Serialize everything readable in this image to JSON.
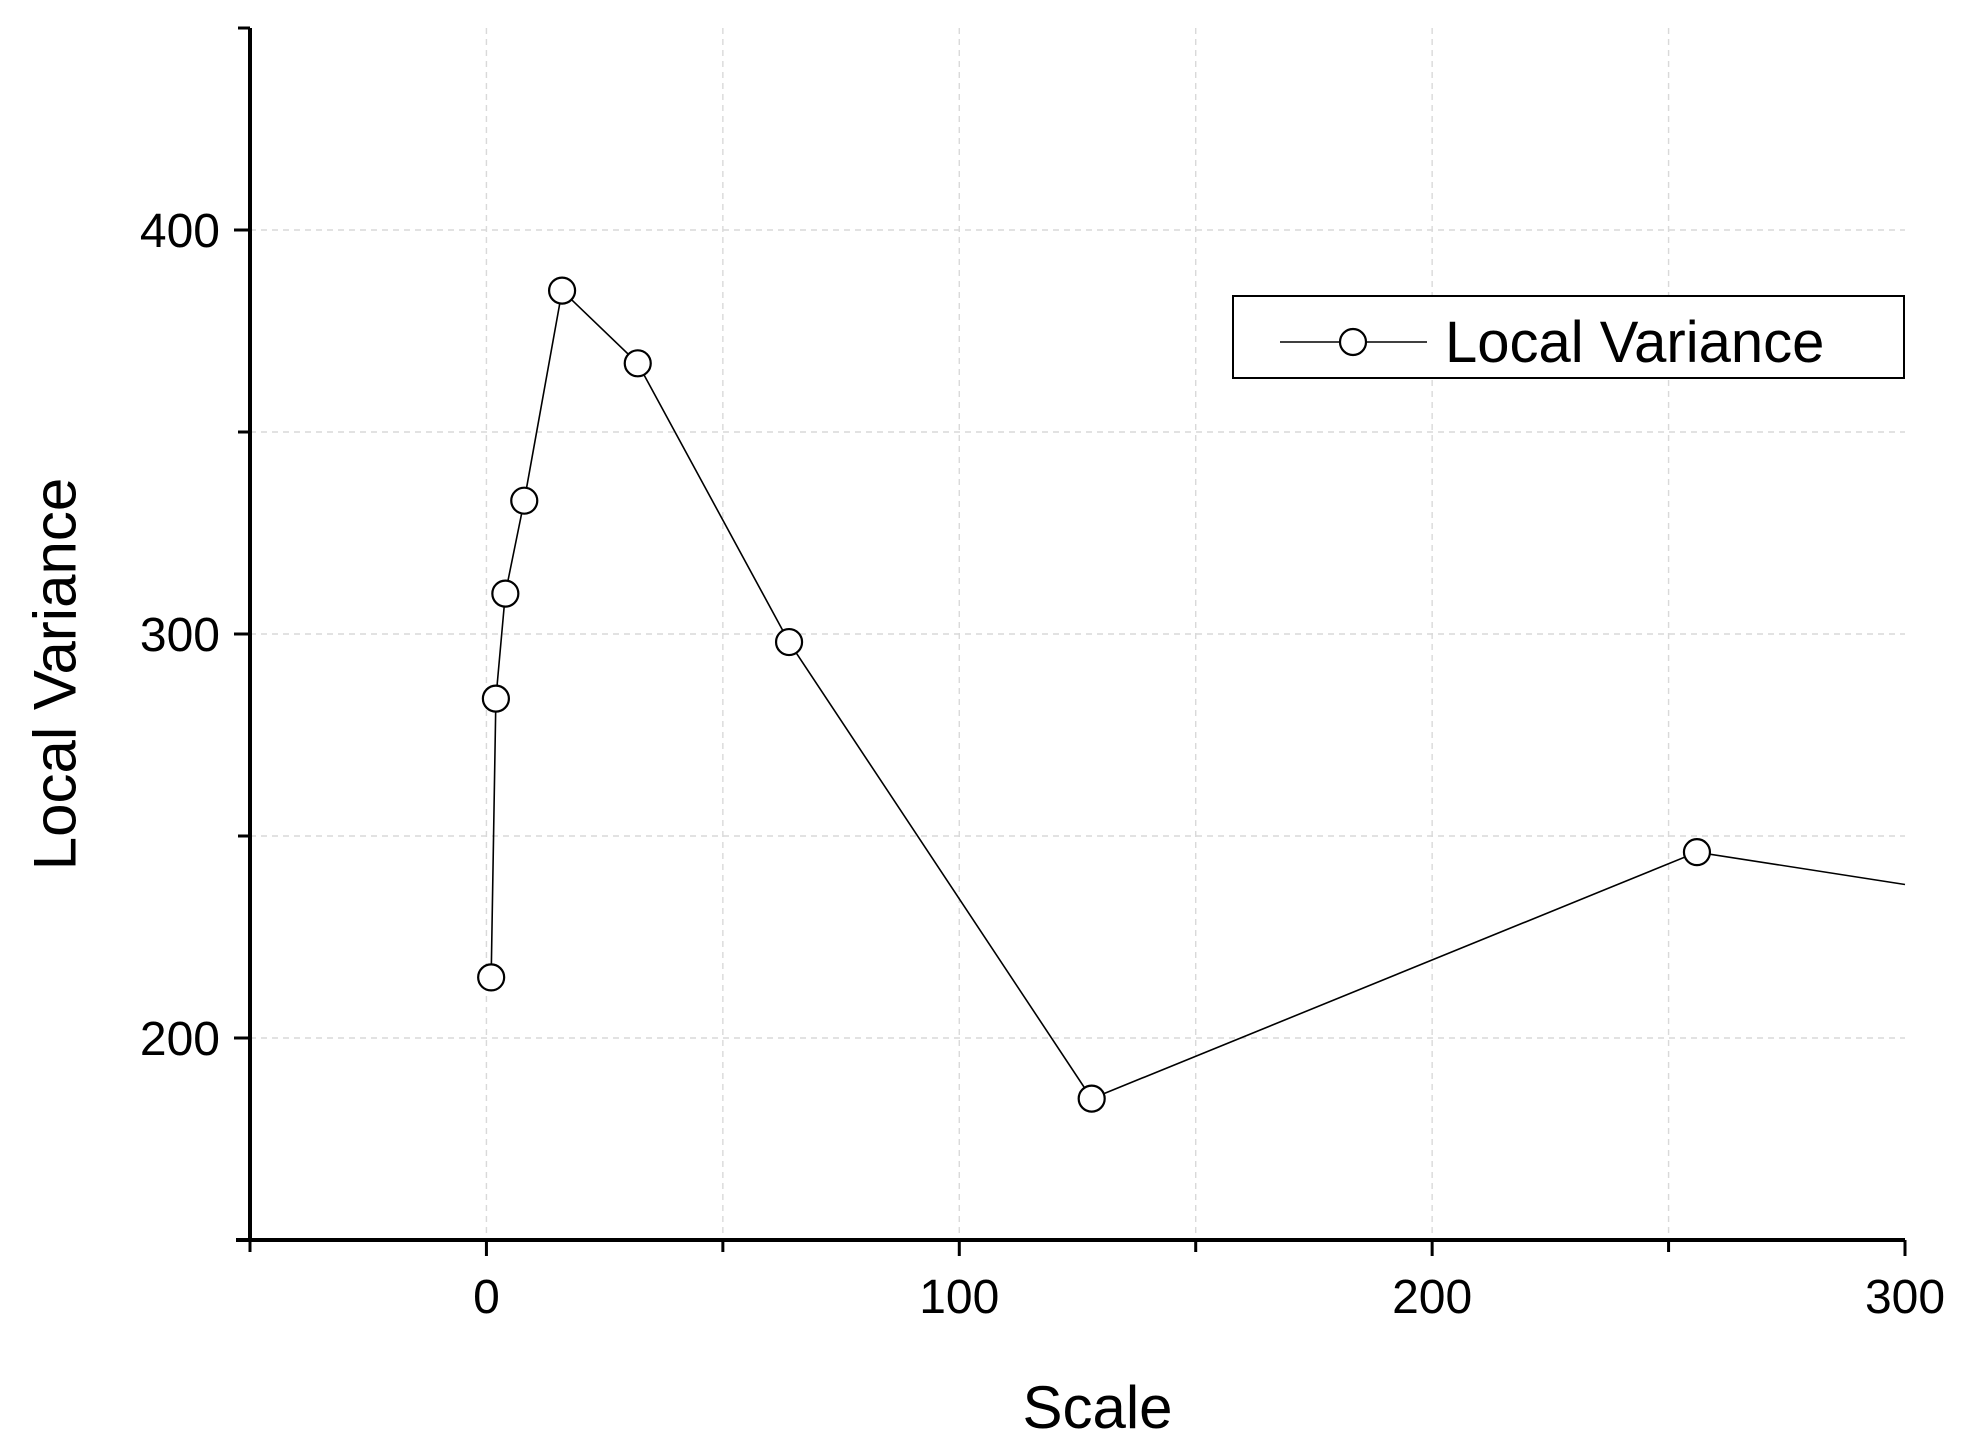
{
  "chart_data": {
    "type": "line",
    "title": "",
    "xlabel": "Scale",
    "ylabel": "Local Variance",
    "xlim": [
      -50,
      300
    ],
    "ylim": [
      150,
      450
    ],
    "xticks": [
      0,
      100,
      200,
      300
    ],
    "yticks": [
      200,
      300,
      400
    ],
    "grid": true,
    "legend_position": "top-right",
    "series": [
      {
        "name": "Local Variance",
        "marker": "open-circle",
        "color": "#000000",
        "x": [
          1,
          2,
          4,
          8,
          16,
          32,
          64,
          128,
          256,
          300
        ],
        "y": [
          215,
          284,
          310,
          333,
          385,
          367,
          298,
          185,
          246,
          238
        ],
        "marker_flags": [
          true,
          true,
          true,
          true,
          true,
          true,
          true,
          true,
          true,
          false
        ]
      }
    ]
  }
}
